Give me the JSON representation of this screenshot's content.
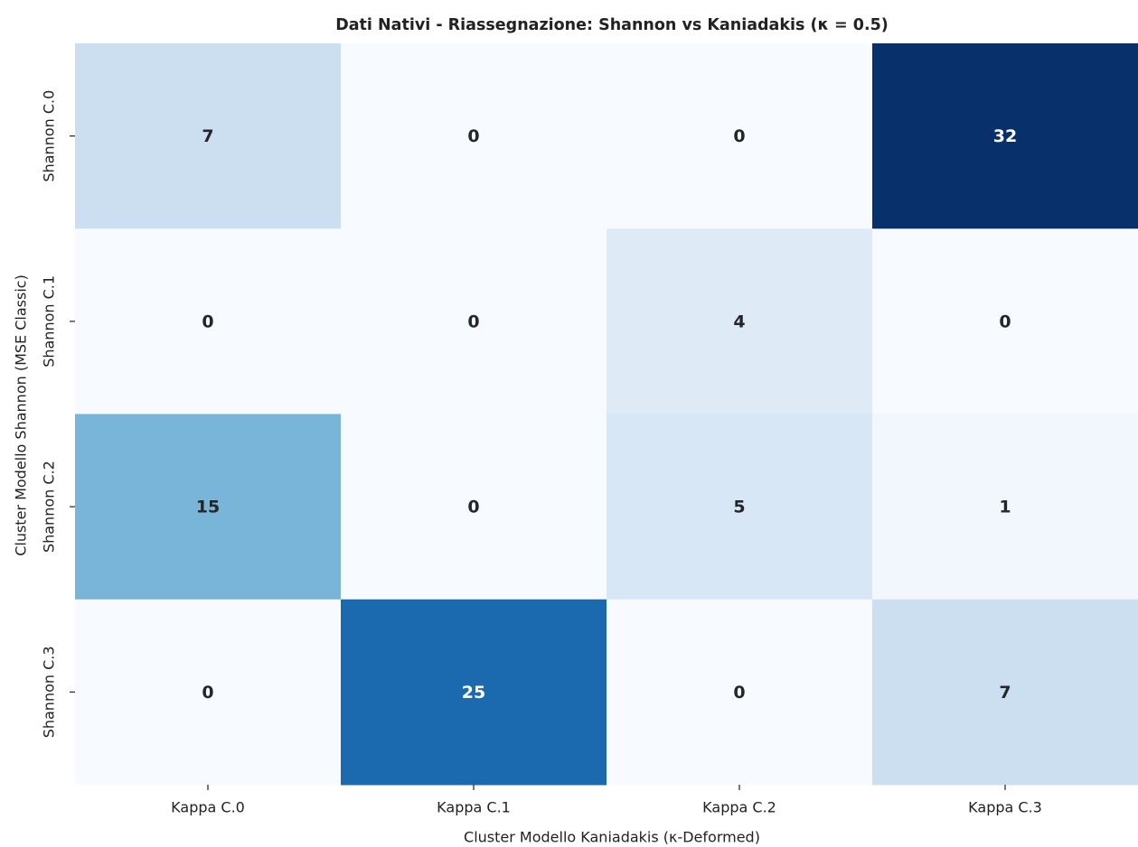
{
  "chart_data": {
    "type": "heatmap",
    "title": "Dati Nativi - Riassegnazione: Shannon vs Kaniadakis (κ = 0.5)",
    "x_label": "Cluster Modello Kaniadakis (κ-Deformed)",
    "y_label": "Cluster Modello Shannon (MSE Classic)",
    "x_categories": [
      "Kappa C.0",
      "Kappa C.1",
      "Kappa C.2",
      "Kappa C.3"
    ],
    "y_categories": [
      "Shannon C.0",
      "Shannon C.1",
      "Shannon C.2",
      "Shannon C.3"
    ],
    "values": [
      [
        7,
        0,
        0,
        32
      ],
      [
        0,
        0,
        4,
        0
      ],
      [
        15,
        0,
        5,
        1
      ],
      [
        0,
        25,
        0,
        7
      ]
    ],
    "colormap": "Blues"
  }
}
